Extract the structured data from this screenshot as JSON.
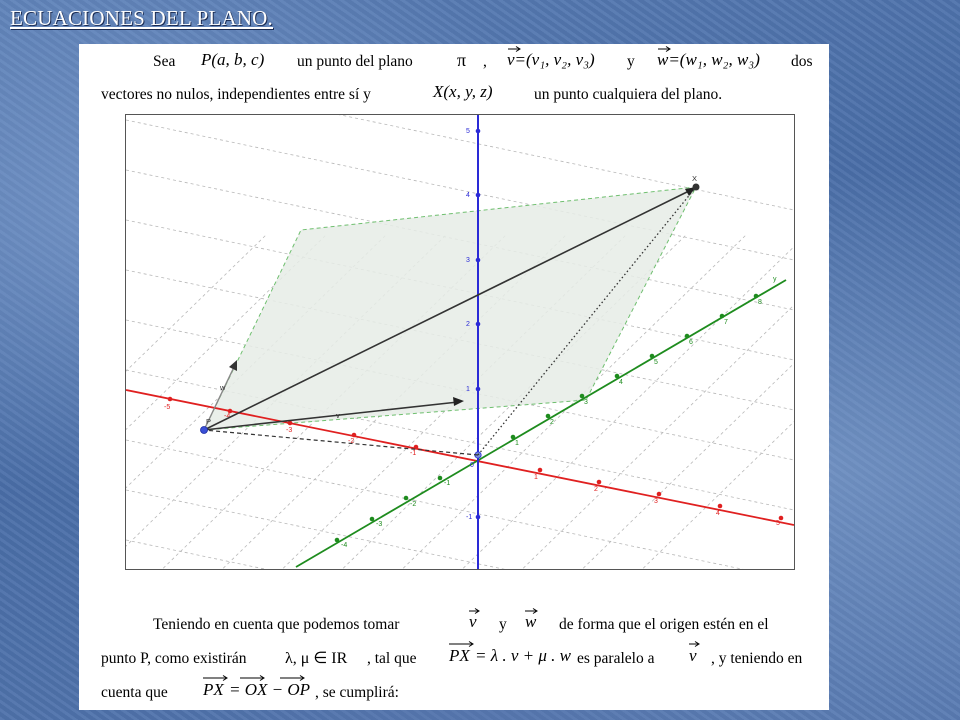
{
  "slide": {
    "title": "ECUACIONES DEL PLANO."
  },
  "intro": {
    "w_sea": "Sea",
    "w_point_p": "P(a, b, c)",
    "w_un_punto_del_plano": "un punto del plano",
    "w_pi": "π",
    "w_comma": ",",
    "w_vec_v_def": "v=(v₁, v₂, v₃)",
    "w_y": "y",
    "w_vec_w_def": "w=(w₁, w₂, w₃)",
    "w_dos": "dos",
    "line2_start": "vectores no nulos, independientes entre sí y",
    "w_point_x": "X(x, y, z)",
    "line2_end": "un punto cualquiera del plano."
  },
  "figure": {
    "label_z_5": "5",
    "label_z_4": "4",
    "label_z_3": "3",
    "label_z_2": "2",
    "label_z_1": "1",
    "label_z_m1": "-1",
    "label_origin": "0",
    "label_x_m5": "-5",
    "label_x_m4": "-4",
    "label_x_m3": "-3",
    "label_x_m2": "-2",
    "label_x_m1": "-1",
    "label_x_1": "1",
    "label_x_2": "2",
    "label_x_3": "3",
    "label_x_4": "4",
    "label_x_5": "5",
    "label_y_1": "1",
    "label_y_2": "2",
    "label_y_3": "3",
    "label_y_4": "4",
    "label_y_5": "5",
    "label_y_6": "6",
    "label_y_7": "7",
    "label_y_8": "8",
    "label_y_axis": "y",
    "label_y_m1": "-1",
    "label_y_m2": "-2",
    "label_y_m3": "-3",
    "label_y_m4": "-4",
    "label_point_x": "X",
    "label_w": "w",
    "label_v": "v",
    "label_p": "P",
    "colors": {
      "x_axis": "#e02020",
      "y_axis": "#1e8c1e",
      "z_axis": "#2a2ad6",
      "plane_fill": "#e6ece6",
      "plane_edge": "#6fbf6f"
    }
  },
  "bottom": {
    "line1_start": "Teniendo en cuenta que podemos tomar",
    "v_sym": "v",
    "y_word": "y",
    "w_sym": "w",
    "line1_end": "de forma que el origen estén en el",
    "line2_start": "punto P, como existirán",
    "lambda_mu": "λ, μ ∈ IR",
    "tal_que": ", tal que",
    "px_lhs": "PX",
    "px_rhs": "= λ . v + μ . w",
    "paralelo": "es paralelo a",
    "v_sym2": "v",
    "line2_end": ", y teniendo en",
    "line3_start": "cuenta que",
    "px_eq_lhs": "PX",
    "px_eq_rhs": "= OX − OP",
    "line3_end": ", se cumplirá:"
  }
}
